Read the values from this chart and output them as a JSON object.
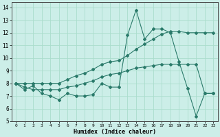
{
  "xlabel": "Humidex (Indice chaleur)",
  "xlim": [
    -0.5,
    23.5
  ],
  "ylim": [
    5,
    14.4
  ],
  "yticks": [
    5,
    6,
    7,
    8,
    9,
    10,
    11,
    12,
    13,
    14
  ],
  "xticks": [
    0,
    1,
    2,
    3,
    4,
    5,
    6,
    7,
    8,
    9,
    10,
    11,
    12,
    13,
    14,
    15,
    16,
    17,
    18,
    19,
    20,
    21,
    22,
    23
  ],
  "background_color": "#cceee8",
  "grid_color": "#aaddcc",
  "line_color": "#2a7a6a",
  "line1_y": [
    8.0,
    7.5,
    7.8,
    7.2,
    7.0,
    6.7,
    7.2,
    7.0,
    7.0,
    7.1,
    8.0,
    7.7,
    7.7,
    11.8,
    13.8,
    11.5,
    12.3,
    12.3,
    12.0,
    9.7,
    7.6,
    5.4,
    7.2,
    7.2
  ],
  "line2_y": [
    8.0,
    8.0,
    8.0,
    8.0,
    8.0,
    8.0,
    8.3,
    8.6,
    8.8,
    9.1,
    9.5,
    9.7,
    9.8,
    10.2,
    10.7,
    11.1,
    11.5,
    11.9,
    12.1,
    12.1,
    12.0,
    12.0,
    12.0,
    12.0
  ],
  "line3_y": [
    8.0,
    7.7,
    7.5,
    7.5,
    7.5,
    7.5,
    7.7,
    7.8,
    8.0,
    8.2,
    8.5,
    8.7,
    8.8,
    9.0,
    9.2,
    9.3,
    9.4,
    9.5,
    9.5,
    9.5,
    9.5,
    9.5,
    7.2,
    7.2
  ]
}
